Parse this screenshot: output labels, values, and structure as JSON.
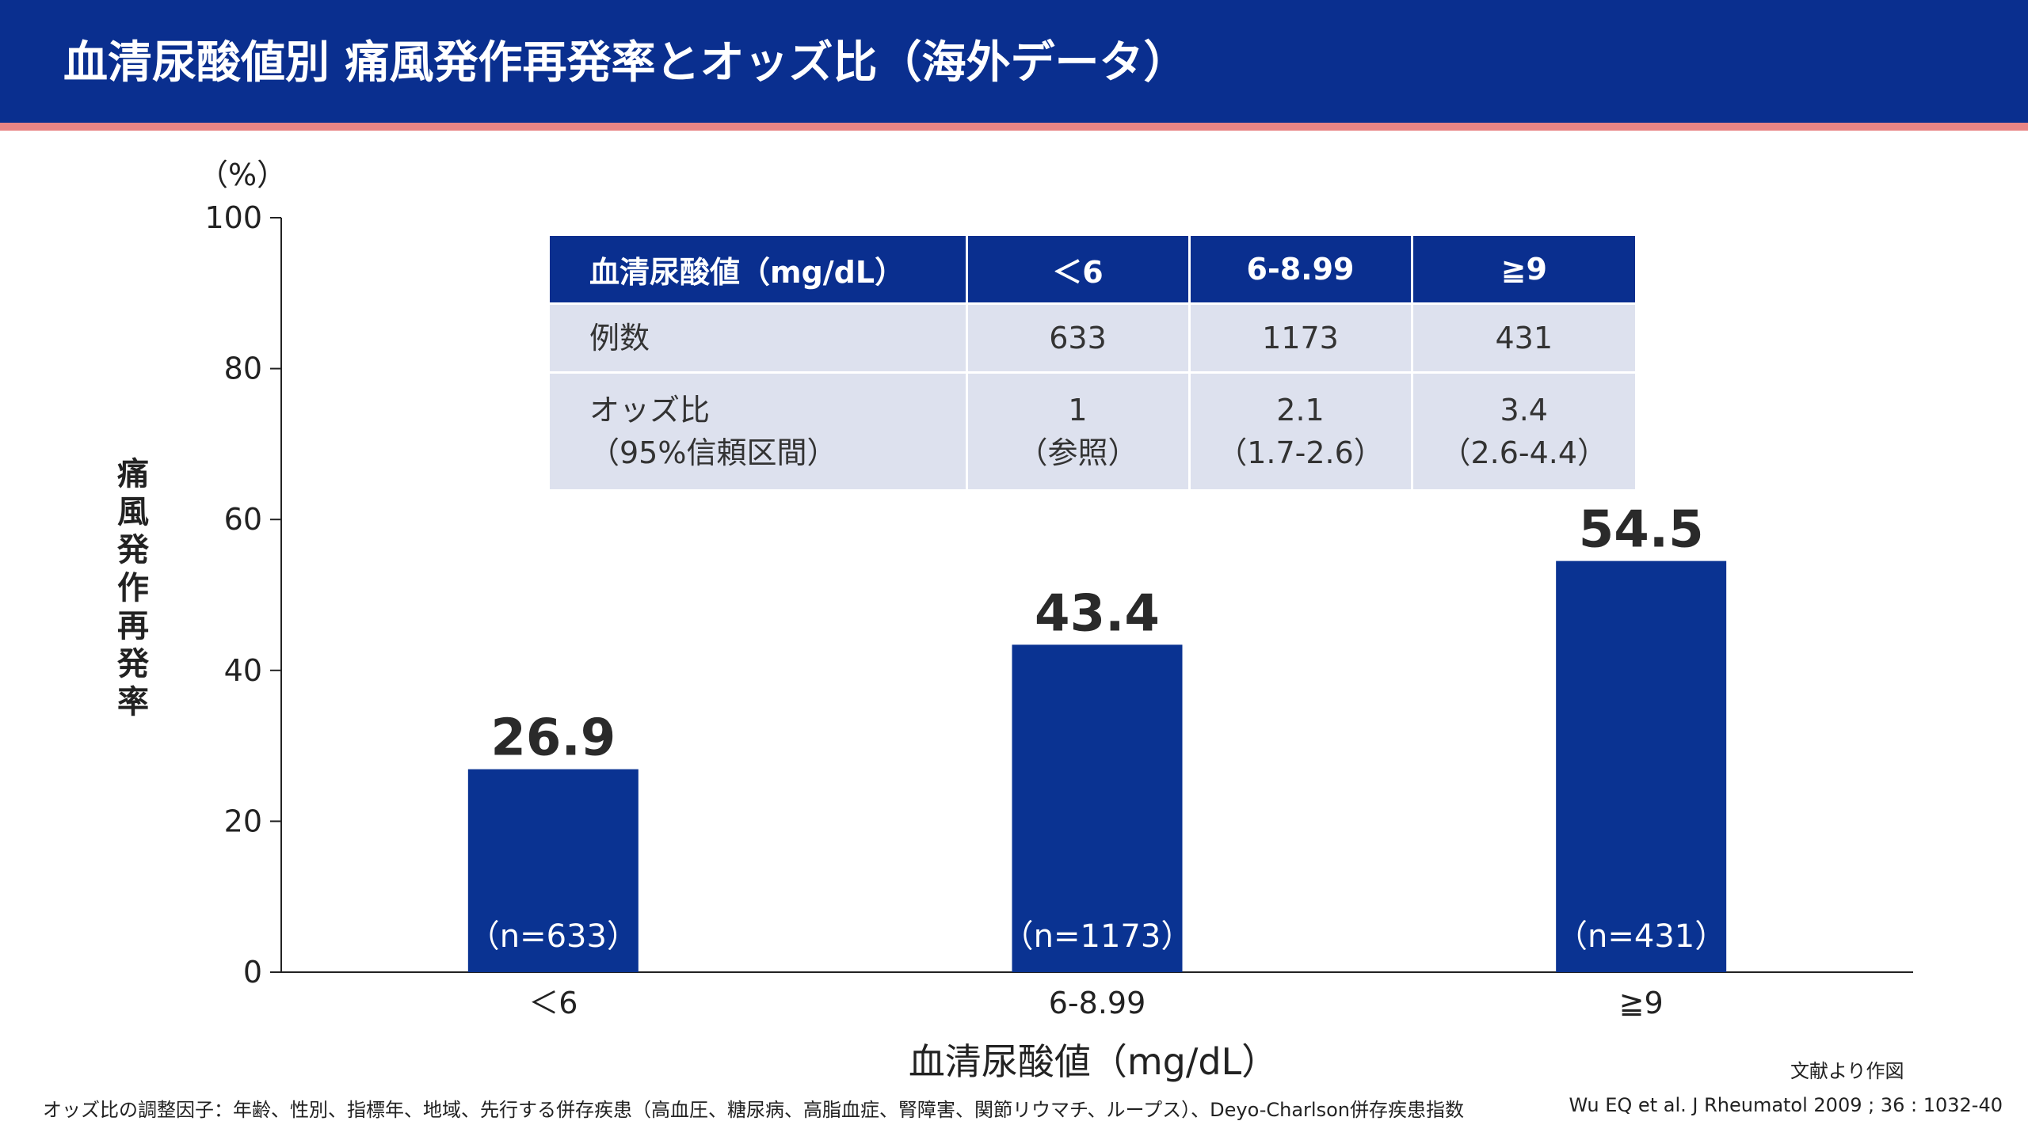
{
  "title": "血清尿酸値別 痛風発作再発率とオッズ比（海外データ）",
  "colors": {
    "header_bg": "#0a2f8f",
    "accent_line": "#e88585",
    "bar": "#0a3392",
    "table_header_bg": "#0a2f8f",
    "table_body_bg": "#dde1ee"
  },
  "chart_data": {
    "type": "bar",
    "categories": [
      "＜6",
      "6-8.99",
      "≧9"
    ],
    "values": [
      26.9,
      43.4,
      54.5
    ],
    "value_labels": [
      "26.9",
      "43.4",
      "54.5"
    ],
    "bar_labels": [
      "（n=633）",
      "（n=1173）",
      "（n=431）"
    ],
    "ylim": [
      0,
      100
    ],
    "yticks": [
      0,
      20,
      40,
      60,
      80,
      100
    ],
    "ylabel": "痛風発作再発率",
    "yunit": "（%）",
    "xlabel": "血清尿酸値（mg/dL）",
    "grid": false
  },
  "table": {
    "headers": [
      "血清尿酸値（mg/dL）",
      "＜6",
      "6-8.99",
      "≧9"
    ],
    "rows": [
      {
        "label": "例数",
        "cells": [
          "633",
          "1173",
          "431"
        ]
      },
      {
        "label": "オッズ比",
        "label_sub": "（95%信頼区間）",
        "cells": [
          "1",
          "2.1",
          "3.4"
        ],
        "cells_sub": [
          "（参照）",
          "（1.7-2.6）",
          "（2.6-4.4）"
        ]
      }
    ]
  },
  "source_note": "文献より作図",
  "footnote": "オッズ比の調整因子：年齢、性別、指標年、地域、先行する併存疾患（高血圧、糖尿病、高脂血症、腎障害、関節リウマチ、ループス）、Deyo-Charlson併存疾患指数",
  "citation": "Wu EQ et al. J Rheumatol 2009 ; 36 : 1032-40"
}
